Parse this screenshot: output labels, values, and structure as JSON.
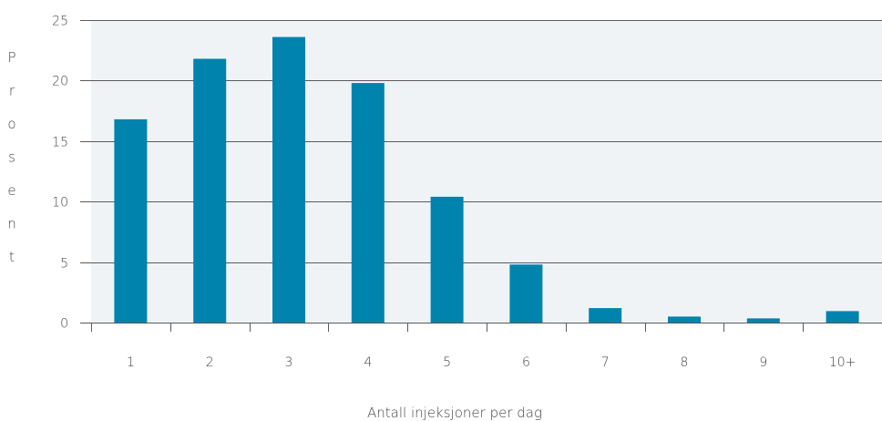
{
  "chart_data": {
    "type": "bar",
    "title": "",
    "xlabel": "Antall injeksjoner per dag",
    "ylabel": "Prosent",
    "categories": [
      "1",
      "2",
      "3",
      "4",
      "5",
      "6",
      "7",
      "8",
      "9",
      "10+"
    ],
    "values": [
      16.8,
      21.8,
      23.6,
      19.8,
      10.4,
      4.8,
      1.2,
      0.5,
      0.35,
      0.95
    ],
    "ylim": [
      0,
      25
    ],
    "yticks": [
      0,
      5,
      10,
      15,
      20,
      25
    ],
    "grid": true,
    "colors": {
      "bar": "#0083ad",
      "plot_background": "#f0f3f6",
      "gridline": "#5a5a5a"
    }
  }
}
